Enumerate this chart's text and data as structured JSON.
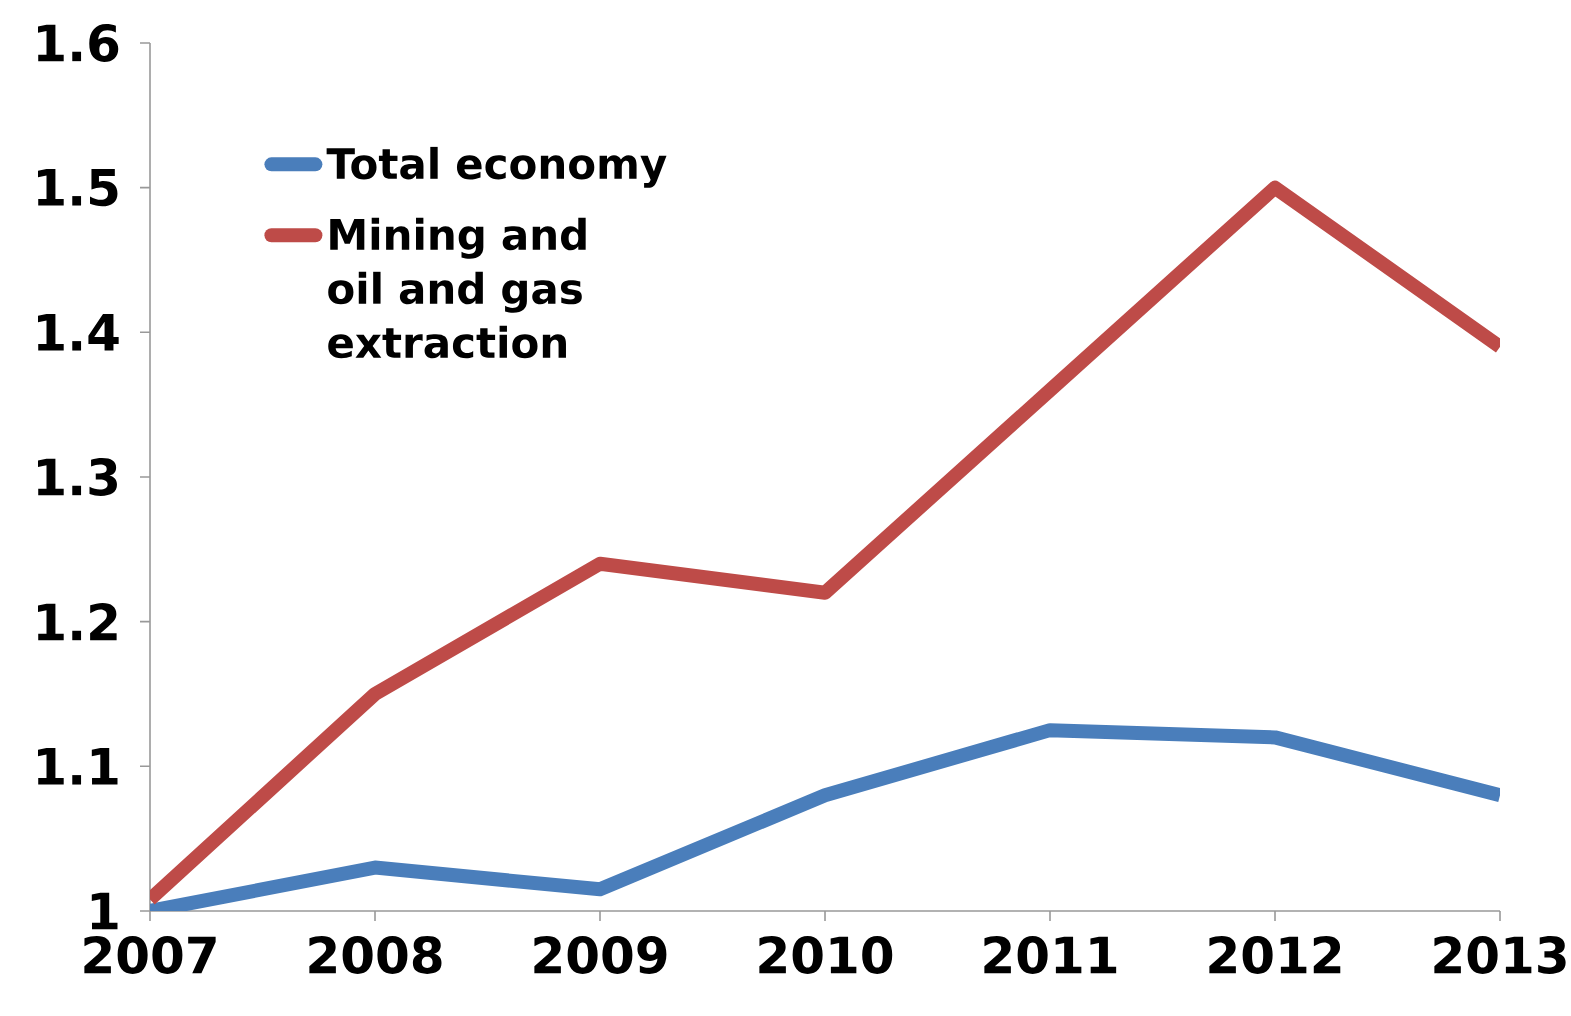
{
  "chart_data": {
    "type": "line",
    "categories": [
      "2007",
      "2008",
      "2009",
      "2010",
      "2011",
      "2012",
      "2013"
    ],
    "series": [
      {
        "name": "Total economy",
        "color": "#4a7ebb",
        "values": [
          1.0,
          1.03,
          1.015,
          1.08,
          1.125,
          1.12,
          1.08
        ]
      },
      {
        "name": "Mining and oil and gas extraction",
        "color": "#be4b48",
        "values": [
          1.008,
          1.15,
          1.24,
          1.22,
          1.36,
          1.5,
          1.39
        ]
      }
    ],
    "ylim": [
      1,
      1.6
    ],
    "yticks": [
      1,
      1.1,
      1.2,
      1.3,
      1.4,
      1.5,
      1.6
    ],
    "grid": false,
    "legend": "top left",
    "marker": "none",
    "line_style": "solid"
  }
}
